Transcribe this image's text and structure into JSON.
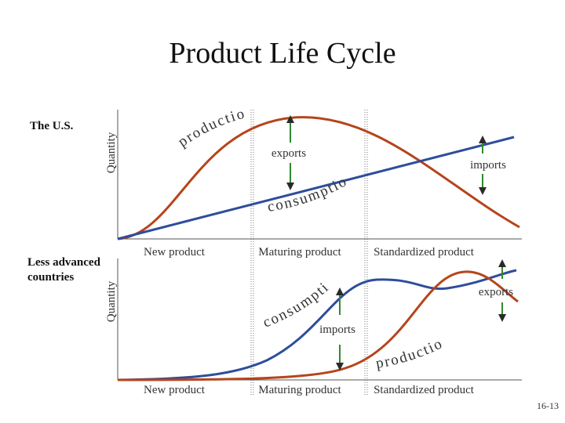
{
  "title": "Product Life Cycle",
  "top_panel": {
    "country": "The U.S.",
    "y_axis_label": "Quantity",
    "production_label": "production",
    "consumption_label": "consumption",
    "exports_label": "exports",
    "imports_label": "imports",
    "stages": [
      "New product",
      "Maturing product",
      "Standardized product"
    ]
  },
  "bottom_panel": {
    "country": "Less advanced countries",
    "y_axis_label": "Quantity",
    "production_label": "production",
    "consumption_label": "consumption",
    "exports_label": "exports",
    "imports_label": "imports",
    "stages": [
      "New product",
      "Maturing product",
      "Standardized product"
    ]
  },
  "slide_number": "16-13"
}
